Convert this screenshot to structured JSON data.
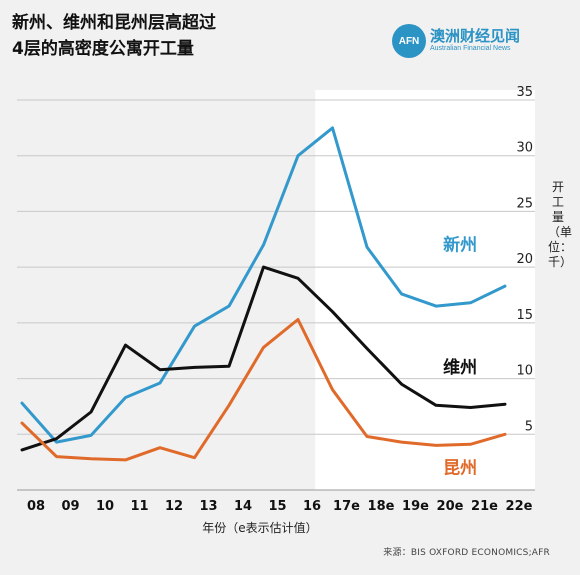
{
  "header": {
    "title_line1": "新州、维州和昆州层高超过",
    "title_line2": "4层的高密度公寓开工量"
  },
  "logo": {
    "badge": "AFN",
    "name_cn": "澳洲财经见闻",
    "name_en": "Australian Financial News"
  },
  "source": "来源：BIS OXFORD ECONOMICS;AFR",
  "colors": {
    "nsw": "#3399cc",
    "vic": "#111111",
    "qld": "#e06a2a",
    "grid": "#c8c8c8",
    "forecast_bg": "#ffffff"
  },
  "chart_data": {
    "type": "line",
    "categories": [
      "08",
      "09",
      "10",
      "11",
      "12",
      "13",
      "14",
      "15",
      "16",
      "17e",
      "18e",
      "19e",
      "20e",
      "21e",
      "22e"
    ],
    "xlabel": "年份（e表示估计值）",
    "ylabel": "开工量（单位：千）",
    "ylim": [
      0,
      35
    ],
    "yticks": [
      5,
      10,
      15,
      20,
      25,
      30,
      35
    ],
    "grid": true,
    "forecast_start": "17e",
    "series": [
      {
        "name": "新州",
        "color": "#3399cc",
        "values": [
          7.8,
          4.3,
          4.9,
          8.3,
          9.6,
          14.7,
          16.5,
          22.0,
          30.0,
          32.5,
          21.8,
          17.6,
          16.5,
          16.8,
          18.3
        ]
      },
      {
        "name": "维州",
        "color": "#111111",
        "values": [
          3.6,
          4.6,
          7.0,
          13.0,
          10.8,
          11.0,
          11.1,
          20.0,
          19.0,
          16.0,
          12.7,
          9.5,
          7.6,
          7.4,
          7.7
        ]
      },
      {
        "name": "昆州",
        "color": "#e06a2a",
        "values": [
          6.0,
          3.0,
          2.8,
          2.7,
          3.8,
          2.9,
          7.6,
          12.8,
          15.3,
          9.0,
          4.8,
          4.3,
          4.0,
          4.1,
          5.0
        ]
      }
    ]
  }
}
